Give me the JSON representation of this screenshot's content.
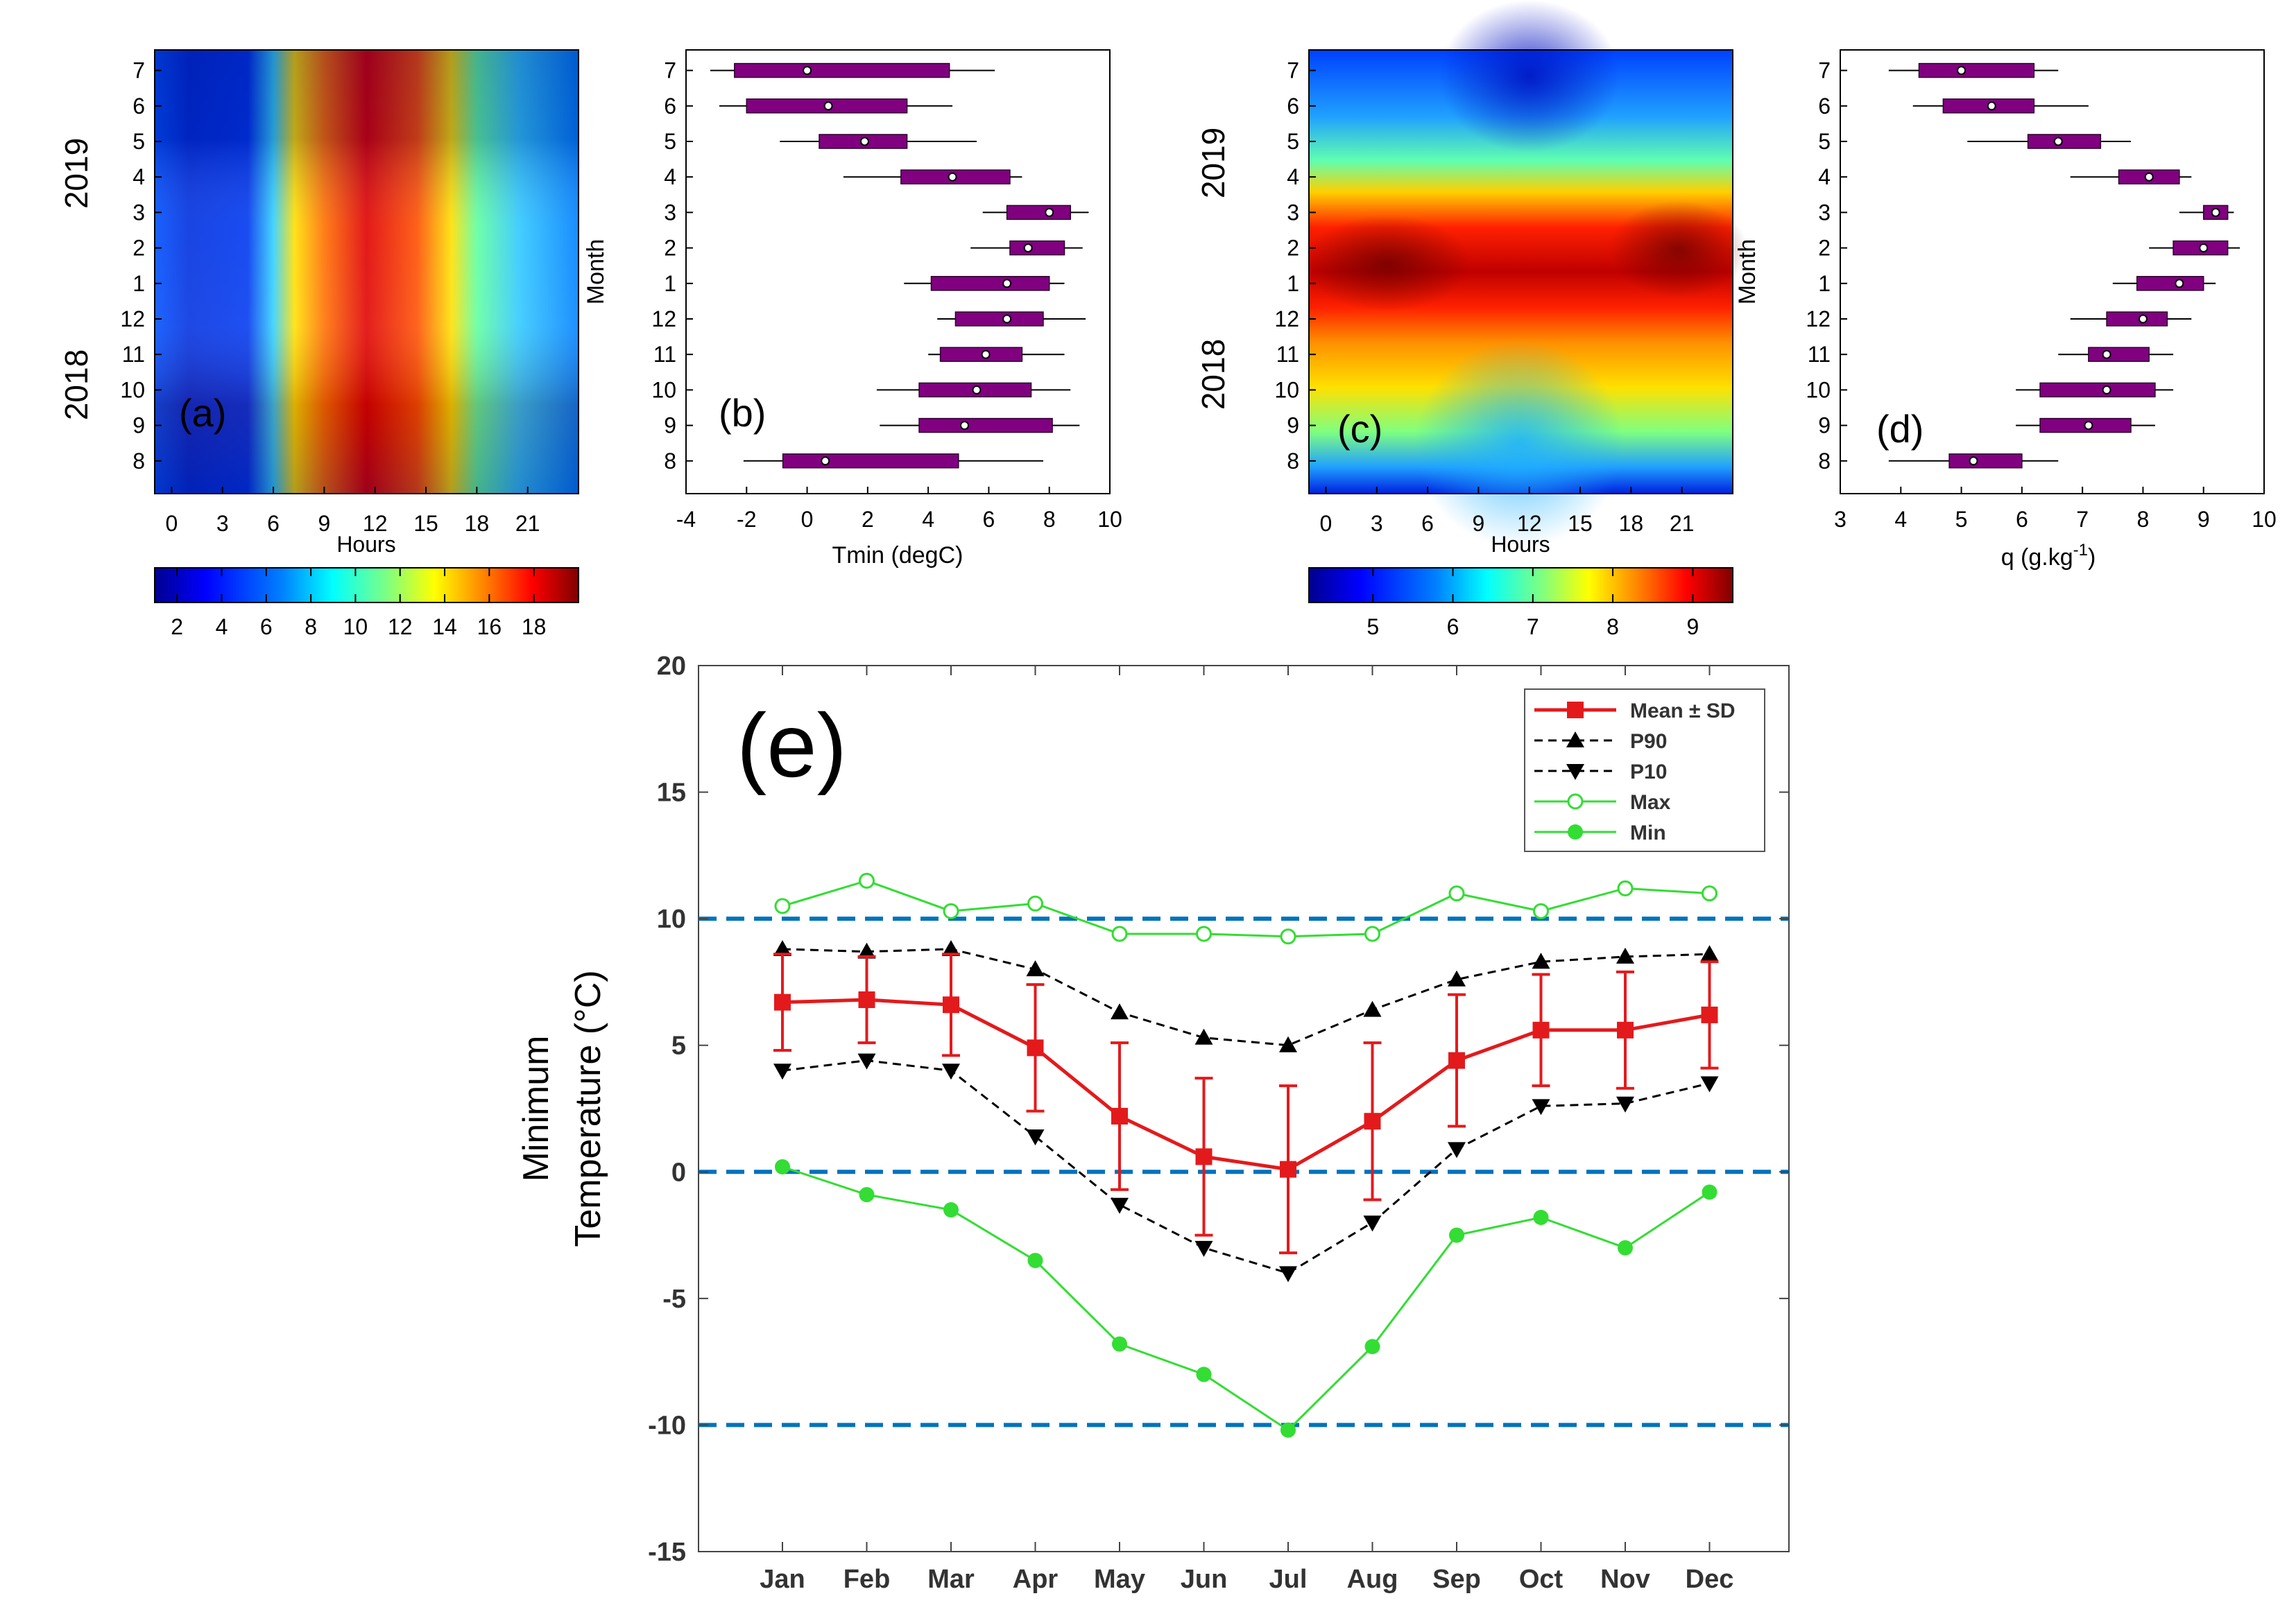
{
  "chart_data": [
    {
      "panel": "(a)",
      "type": "heatmap",
      "xlabel": "Hours",
      "x_ticks": [
        "0",
        "3",
        "6",
        "9",
        "12",
        "15",
        "18",
        "21"
      ],
      "xlim": [
        -1,
        24
      ],
      "y_ticks": [
        "7",
        "6",
        "5",
        "4",
        "3",
        "2",
        "1",
        "12",
        "11",
        "10",
        "9",
        "8"
      ],
      "year_labels": [
        "2019",
        "2018"
      ],
      "colorbar_ticks": [
        "2",
        "4",
        "6",
        "8",
        "10",
        "12",
        "14",
        "16",
        "18"
      ],
      "colorbar_range": [
        1,
        20
      ],
      "colormap": [
        "#00008f",
        "#0000ff",
        "#0080ff",
        "#00ffff",
        "#80ff80",
        "#ffff00",
        "#ff8000",
        "#ff0000",
        "#800000"
      ]
    },
    {
      "panel": "(b)",
      "type": "boxplot",
      "xlabel": "Tmin (degC)",
      "ylabel": "Month",
      "x_ticks": [
        "-4",
        "-2",
        "0",
        "2",
        "4",
        "6",
        "8",
        "10"
      ],
      "xlim": [
        -4,
        10
      ],
      "box_color": "#800080",
      "boxes": [
        {
          "month": "7",
          "whisker_low": -3.2,
          "q1": -2.4,
          "median": 0.0,
          "q3": 4.7,
          "whisker_high": 6.2
        },
        {
          "month": "6",
          "whisker_low": -2.9,
          "q1": -2.0,
          "median": 0.7,
          "q3": 3.3,
          "whisker_high": 4.8
        },
        {
          "month": "5",
          "whisker_low": -0.9,
          "q1": 0.4,
          "median": 1.9,
          "q3": 3.3,
          "whisker_high": 5.6
        },
        {
          "month": "4",
          "whisker_low": 1.2,
          "q1": 3.1,
          "median": 4.8,
          "q3": 6.7,
          "whisker_high": 7.1
        },
        {
          "month": "3",
          "whisker_low": 5.8,
          "q1": 6.6,
          "median": 8.0,
          "q3": 8.7,
          "whisker_high": 9.3
        },
        {
          "month": "2",
          "whisker_low": 5.4,
          "q1": 6.7,
          "median": 7.3,
          "q3": 8.5,
          "whisker_high": 9.1
        },
        {
          "month": "1",
          "whisker_low": 3.2,
          "q1": 4.1,
          "median": 6.6,
          "q3": 8.0,
          "whisker_high": 8.5
        },
        {
          "month": "12",
          "whisker_low": 4.3,
          "q1": 4.9,
          "median": 6.6,
          "q3": 7.8,
          "whisker_high": 9.2
        },
        {
          "month": "11",
          "whisker_low": 4.0,
          "q1": 4.4,
          "median": 5.9,
          "q3": 7.1,
          "whisker_high": 8.5
        },
        {
          "month": "10",
          "whisker_low": 2.3,
          "q1": 3.7,
          "median": 5.6,
          "q3": 7.4,
          "whisker_high": 8.7
        },
        {
          "month": "9",
          "whisker_low": 2.4,
          "q1": 3.7,
          "median": 5.2,
          "q3": 8.1,
          "whisker_high": 9.0
        },
        {
          "month": "8",
          "whisker_low": -2.1,
          "q1": -0.8,
          "median": 0.6,
          "q3": 5.0,
          "whisker_high": 7.8
        }
      ]
    },
    {
      "panel": "(c)",
      "type": "heatmap",
      "xlabel": "Hours",
      "x_ticks": [
        "0",
        "3",
        "6",
        "9",
        "12",
        "15",
        "18",
        "21"
      ],
      "xlim": [
        -1,
        24
      ],
      "y_ticks": [
        "7",
        "6",
        "5",
        "4",
        "3",
        "2",
        "1",
        "12",
        "11",
        "10",
        "9",
        "8"
      ],
      "year_labels": [
        "2019",
        "2018"
      ],
      "colorbar_ticks": [
        "5",
        "6",
        "7",
        "8",
        "9"
      ],
      "colorbar_range": [
        4.2,
        9.5
      ]
    },
    {
      "panel": "(d)",
      "type": "boxplot",
      "xlabel": "q (g.kg",
      "xlabel_superscript": "-1",
      "xlabel_suffix": ")",
      "ylabel": "Month",
      "x_ticks": [
        "3",
        "4",
        "5",
        "6",
        "7",
        "8",
        "9",
        "10"
      ],
      "xlim": [
        3,
        10
      ],
      "box_color": "#800080",
      "boxes": [
        {
          "month": "7",
          "whisker_low": 3.8,
          "q1": 4.3,
          "median": 5.0,
          "q3": 6.2,
          "whisker_high": 6.6
        },
        {
          "month": "6",
          "whisker_low": 4.2,
          "q1": 4.7,
          "median": 5.5,
          "q3": 6.2,
          "whisker_high": 7.1
        },
        {
          "month": "5",
          "whisker_low": 5.1,
          "q1": 6.1,
          "median": 6.6,
          "q3": 7.3,
          "whisker_high": 7.8
        },
        {
          "month": "4",
          "whisker_low": 6.8,
          "q1": 7.6,
          "median": 8.1,
          "q3": 8.6,
          "whisker_high": 8.8
        },
        {
          "month": "3",
          "whisker_low": 8.6,
          "q1": 9.0,
          "median": 9.2,
          "q3": 9.4,
          "whisker_high": 9.5
        },
        {
          "month": "2",
          "whisker_low": 8.1,
          "q1": 8.5,
          "median": 9.0,
          "q3": 9.4,
          "whisker_high": 9.6
        },
        {
          "month": "1",
          "whisker_low": 7.5,
          "q1": 7.9,
          "median": 8.6,
          "q3": 9.0,
          "whisker_high": 9.2
        },
        {
          "month": "12",
          "whisker_low": 6.8,
          "q1": 7.4,
          "median": 8.0,
          "q3": 8.4,
          "whisker_high": 8.8
        },
        {
          "month": "11",
          "whisker_low": 6.6,
          "q1": 7.1,
          "median": 7.4,
          "q3": 8.1,
          "whisker_high": 8.5
        },
        {
          "month": "10",
          "whisker_low": 5.9,
          "q1": 6.3,
          "median": 7.4,
          "q3": 8.2,
          "whisker_high": 8.5
        },
        {
          "month": "9",
          "whisker_low": 5.9,
          "q1": 6.3,
          "median": 7.1,
          "q3": 7.8,
          "whisker_high": 8.2
        },
        {
          "month": "8",
          "whisker_low": 3.8,
          "q1": 4.8,
          "median": 5.2,
          "q3": 6.0,
          "whisker_high": 6.6
        }
      ]
    },
    {
      "panel": "(e)",
      "type": "line",
      "ylabel_line1": "Minimum",
      "ylabel_line2": "Temperature (°C)",
      "categories": [
        "Jan",
        "Feb",
        "Mar",
        "Apr",
        "May",
        "Jun",
        "Jul",
        "Aug",
        "Sep",
        "Oct",
        "Nov",
        "Dec"
      ],
      "ylim": [
        -15,
        20
      ],
      "y_ticks": [
        -15,
        -10,
        -5,
        0,
        5,
        10,
        15,
        20
      ],
      "reference_lines": [
        10,
        0,
        -10
      ],
      "reference_line_color": "#0072bd",
      "series": [
        {
          "name": "Mean ± SD",
          "color": "#e31a1c",
          "marker": "square",
          "style": "solid",
          "values": [
            6.7,
            6.8,
            6.6,
            4.9,
            2.2,
            0.6,
            0.1,
            2.0,
            4.4,
            5.6,
            5.6,
            6.2
          ],
          "sd": [
            1.9,
            1.7,
            2.0,
            2.5,
            2.9,
            3.1,
            3.3,
            3.1,
            2.6,
            2.2,
            2.3,
            2.1
          ]
        },
        {
          "name": "P90",
          "color": "#000000",
          "marker": "triangle-up",
          "style": "dashed",
          "values": [
            8.8,
            8.7,
            8.8,
            8.0,
            6.3,
            5.3,
            5.0,
            6.4,
            7.6,
            8.3,
            8.5,
            8.6
          ]
        },
        {
          "name": "P10",
          "color": "#000000",
          "marker": "triangle-down",
          "style": "dashed",
          "values": [
            4.0,
            4.4,
            4.0,
            1.4,
            -1.3,
            -3.0,
            -4.0,
            -2.0,
            0.9,
            2.6,
            2.7,
            3.5
          ]
        },
        {
          "name": "Max",
          "color": "#33dd33",
          "marker": "circle-open",
          "style": "solid",
          "values": [
            10.5,
            11.5,
            10.3,
            10.6,
            9.4,
            9.4,
            9.3,
            9.4,
            11.0,
            10.3,
            11.2,
            11.0
          ]
        },
        {
          "name": "Min",
          "color": "#33dd33",
          "marker": "circle-filled",
          "style": "solid",
          "values": [
            0.2,
            -0.9,
            -1.5,
            -3.5,
            -6.8,
            -8.0,
            -10.2,
            -6.9,
            -2.5,
            -1.8,
            -3.0,
            -0.8
          ]
        }
      ]
    }
  ]
}
